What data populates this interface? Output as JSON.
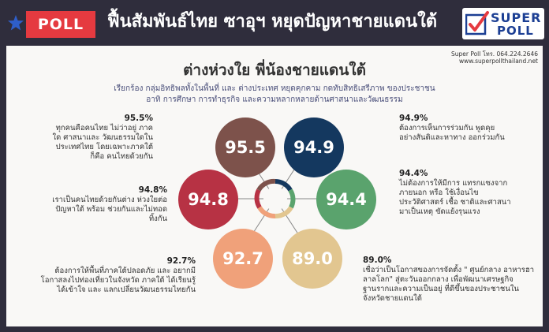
{
  "header": {
    "poll_label": "POLL",
    "title": "ฟื้นสัมพันธ์ไทย ซาอุฯ หยุดปัญหาชายแดนใต้",
    "logo_line1": "SUPER",
    "logo_line2": "POLL"
  },
  "contact": {
    "phone": "Super Poll โทร. 064.224.2646",
    "website": "www.superpollthailand.net"
  },
  "main": {
    "title": "ต่างห่วงใย พี่น้องชายแดนใต้",
    "subtitle_line1": "เรียกร้อง กลุ่มอิทธิพลทั้งในพื้นที่ และ ต่างประเทศ หยุดคุกคาม กดทับสิทธิเสรีภาพ ของประชาชน",
    "subtitle_line2": "อาทิ การศึกษา การทำธุรกิจ และความหลากหลายด้านศาสนาและวัฒนธรรม"
  },
  "stats": [
    {
      "pct": "95.5%",
      "text": "ทุกคนคือคนไทย ไม่ว่าอยู่ ภาคใด ศาสนาและ วัฒนธรรมใดในประเทศไทย โดยเฉพาะภาคใต้ ก็คือ คนไทยด้วยกัน"
    },
    {
      "pct": "94.8%",
      "text": "เราเป็นคนไทยด้วยกันต่าง ห่วงใยต่อปัญหาใต้ พร้อม ช่วยกันและไม่ทอดทิ้งกัน"
    },
    {
      "pct": "92.7%",
      "text": "ต้องการให้พื้นที่ภาคใต้ปลอดภัย และ อยากมีโอกาสลงไปท่องเที่ยวในจังหวัด ภาคใต้ ได้เรียนรู้ได้เข้าใจ และ แลกเปลี่ยนวัฒนธรรมไทยกัน"
    },
    {
      "pct": "94.9%",
      "text": "ต้องการเห็นการร่วมกัน พูดคุยอย่างสันติและหาทาง ออกร่วมกัน"
    },
    {
      "pct": "94.4%",
      "text": "ไม่ต้องการให้มีการ แทรกแซงจากภายนอก หรือ ใช้เงื่อนไขประวัติศาสตร์ เชื้อ ชาติและศาสนา มาเป็นเหตุ ขัดแย้งรุนแรง"
    },
    {
      "pct": "89.0%",
      "text": "เชื่อว่าเป็นโอกาสของการจัดตั้ง \" ศูนย์กลาง อาหารฮาลาลโลก\" สู่ตะวันออกกลาง เพื่อพัฒนาเศรษฐกิจฐานรากและความเป็นอยู่ ที่ดีขึ้นของประชาชนในจังหวัดชายแดนใต้"
    }
  ],
  "circles": [
    {
      "value": "95.5",
      "color": "#7d524b"
    },
    {
      "value": "94.9",
      "color": "#14385f"
    },
    {
      "value": "94.4",
      "color": "#5aa36d"
    },
    {
      "value": "89.0",
      "color": "#e2c690"
    },
    {
      "value": "92.7",
      "color": "#f0a17a"
    },
    {
      "value": "94.8",
      "color": "#b73244"
    }
  ]
}
